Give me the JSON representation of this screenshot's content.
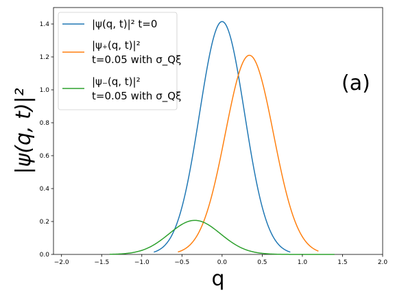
{
  "chart_data": {
    "type": "line",
    "xlabel": "q",
    "ylabel": "|ψ(q, t)|²",
    "xlim": [
      -2.1,
      2.0
    ],
    "ylim": [
      0.0,
      1.5
    ],
    "xticks": [
      -2.0,
      -1.5,
      -1.0,
      -0.5,
      0.0,
      0.5,
      1.0,
      1.5,
      2.0
    ],
    "yticks": [
      0.0,
      0.2,
      0.4,
      0.6,
      0.8,
      1.0,
      1.2,
      1.4
    ],
    "xtick_labels": [
      "−2.0",
      "−1.5",
      "−1.0",
      "−0.5",
      "0.0",
      "0.5",
      "1.0",
      "1.5",
      "2.0"
    ],
    "ytick_labels": [
      "0.0",
      "0.2",
      "0.4",
      "0.6",
      "0.8",
      "1.0",
      "1.2",
      "1.4"
    ],
    "annotation": "(a)",
    "legend_position": "upper-left",
    "grid": false,
    "series": [
      {
        "name": "|ψ(q,t)|²  t=0",
        "color": "#1f77b4",
        "shape": "gaussian",
        "peak_x": 0.0,
        "peak_y": 1.415,
        "sigma": 0.28,
        "x_range": [
          -0.85,
          0.85
        ]
      },
      {
        "name": "|ψ₊(q,t)|²  t=0.05 with σ_Qξ",
        "color": "#ff7f0e",
        "shape": "gaussian",
        "peak_x": 0.34,
        "peak_y": 1.21,
        "sigma": 0.3,
        "x_range": [
          -0.55,
          1.2
        ]
      },
      {
        "name": "|ψ₋(q,t)|²  t=0.05 with σ_Qξ",
        "color": "#2ca02c",
        "shape": "gaussian",
        "peak_x": -0.34,
        "peak_y": 0.207,
        "sigma": 0.32,
        "x_range": [
          -1.4,
          1.4
        ]
      }
    ],
    "legend": [
      {
        "line1": "|ψ(q, t)|²  t=0"
      },
      {
        "line1": "|ψ₊(q, t)|²",
        "line2": "t=0.05 with σ_Qξ"
      },
      {
        "line1": "|ψ₋(q, t)|²",
        "line2": "t=0.05 with σ_Qξ"
      }
    ]
  }
}
